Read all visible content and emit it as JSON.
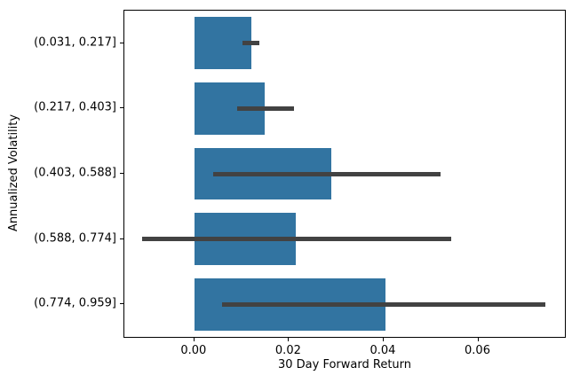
{
  "figure": {
    "background": "#ffffff"
  },
  "chart_data": {
    "type": "bar",
    "orientation": "horizontal",
    "title": "",
    "xlabel": "30 Day Forward Return",
    "ylabel": "Annualized Volatility",
    "categories": [
      "(0.031, 0.217]",
      "(0.217, 0.403]",
      "(0.403, 0.588]",
      "(0.588, 0.774]",
      "(0.774, 0.959]"
    ],
    "values": [
      0.012,
      0.0148,
      0.029,
      0.0215,
      0.0403
    ],
    "error_low": [
      0.0102,
      0.009,
      0.004,
      -0.011,
      0.0058
    ],
    "error_high": [
      0.0137,
      0.0211,
      0.052,
      0.0542,
      0.0742
    ],
    "xlim": [
      -0.0148,
      0.0783
    ],
    "x_ticks": [
      0.0,
      0.02,
      0.04,
      0.06
    ],
    "x_tick_labels": [
      "0.00",
      "0.02",
      "0.04",
      "0.06"
    ],
    "bar_color": "#3274A1",
    "error_color": "#424242",
    "bar_fraction": 0.8,
    "grid": false,
    "legend": null
  }
}
